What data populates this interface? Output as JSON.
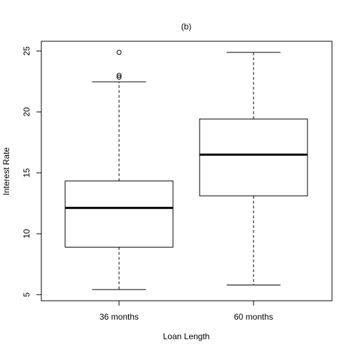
{
  "chart_data": {
    "type": "boxplot",
    "title": "(b)",
    "xlabel": "Loan Length",
    "ylabel": "Interest Rate",
    "ylim": [
      4.5,
      25.8
    ],
    "y_ticks": [
      5,
      10,
      15,
      20,
      25
    ],
    "categories": [
      "36 months",
      "60 months"
    ],
    "boxes": [
      {
        "category": "36 months",
        "whisker_low": 5.42,
        "q1": 8.9,
        "median": 12.12,
        "q3": 14.33,
        "whisker_high": 22.47,
        "outliers": [
          22.85,
          23.0,
          24.89
        ]
      },
      {
        "category": "60 months",
        "whisker_low": 5.79,
        "q1": 13.11,
        "median": 16.49,
        "q3": 19.42,
        "whisker_high": 24.89,
        "outliers": []
      }
    ],
    "grid": false,
    "legend": "none",
    "colors": {
      "box_fill": "#ffffff",
      "stroke": "#000000"
    }
  }
}
